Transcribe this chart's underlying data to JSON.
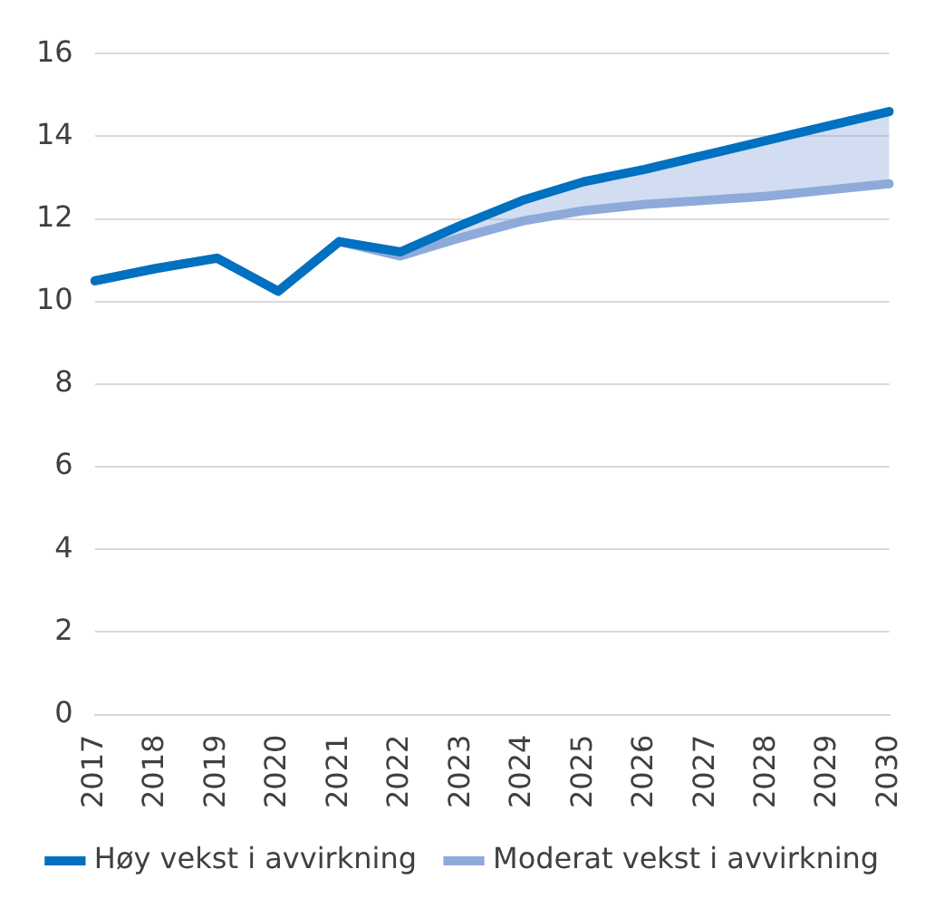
{
  "chart_data": {
    "type": "line",
    "categories": [
      "2017",
      "2018",
      "2019",
      "2020",
      "2021",
      "2022",
      "2023",
      "2024",
      "2025",
      "2026",
      "2027",
      "2028",
      "2029",
      "2030"
    ],
    "series": [
      {
        "name": "Høy vekst i avvirkning",
        "color": "#0070c0",
        "values": [
          10.5,
          10.8,
          11.05,
          10.25,
          11.45,
          11.2,
          11.85,
          12.45,
          12.9,
          13.2,
          13.55,
          13.9,
          14.25,
          14.6
        ],
        "upper": [
          null,
          null,
          null,
          null,
          null,
          11.2,
          11.85,
          12.45,
          12.9,
          13.2,
          13.55,
          13.9,
          14.25,
          14.6
        ],
        "lower": [
          null,
          null,
          null,
          null,
          null,
          11.1,
          11.55,
          11.95,
          12.2,
          12.35,
          12.45,
          12.55,
          12.7,
          12.85
        ]
      },
      {
        "name": "Moderat vekst i avvirkning",
        "color": "#8eaadb",
        "values": [
          10.5,
          10.8,
          11.05,
          10.25,
          11.45,
          11.1,
          11.55,
          11.95,
          12.2,
          12.35,
          12.45,
          12.55,
          12.7,
          12.85
        ]
      }
    ],
    "ylim": [
      0,
      16
    ],
    "yticks": [
      0,
      2,
      4,
      6,
      8,
      10,
      12,
      14,
      16
    ],
    "grid": "y",
    "legend": "bottom",
    "marker": "none",
    "line_style": "solid"
  }
}
